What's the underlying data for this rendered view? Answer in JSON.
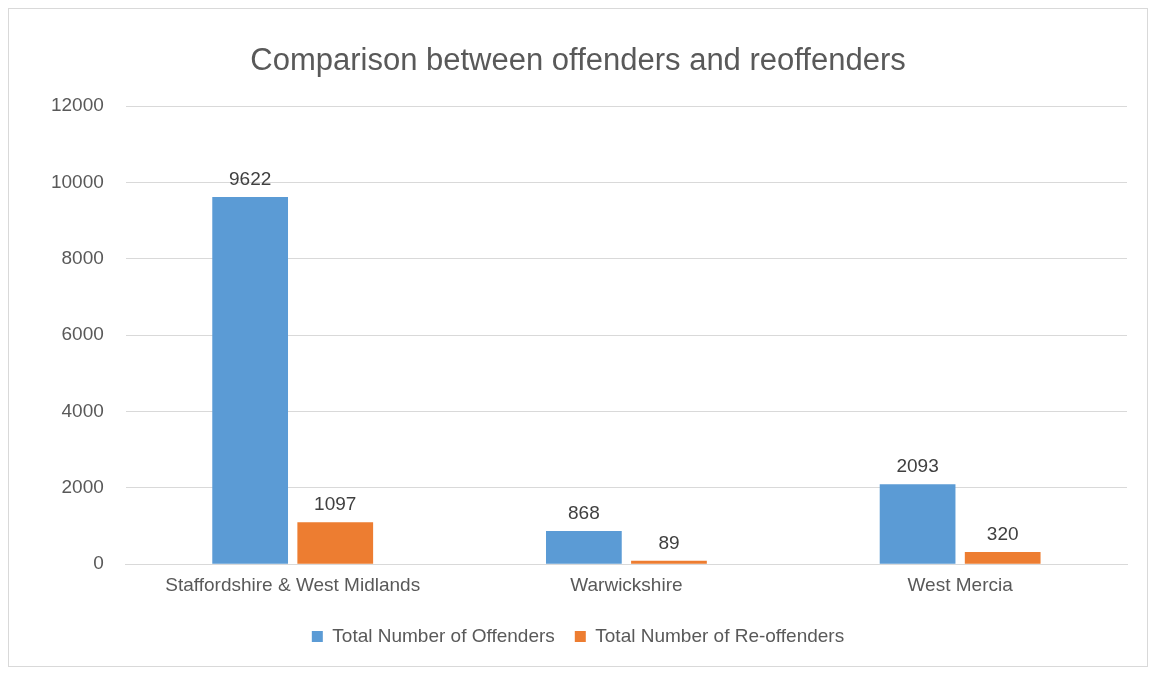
{
  "chart_data": {
    "type": "bar",
    "title": "Comparison between offenders and reoffenders",
    "categories": [
      "Staffordshire & West Midlands",
      "Warwickshire",
      "West Mercia"
    ],
    "series": [
      {
        "name": "Total Number of Offenders",
        "color": "#5b9bd5",
        "values": [
          9622,
          868,
          2093
        ]
      },
      {
        "name": "Total Number of Re-offenders",
        "color": "#ed7d31",
        "values": [
          1097,
          89,
          320
        ]
      }
    ],
    "ylim": [
      0,
      12000
    ],
    "yticks": [
      0,
      2000,
      4000,
      6000,
      8000,
      10000,
      12000
    ],
    "grid": "y",
    "legend": "bottom",
    "data_labels": true
  }
}
